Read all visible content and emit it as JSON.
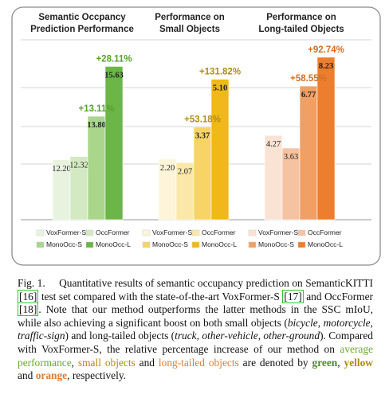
{
  "chart_data": {
    "type": "bar",
    "panels": [
      {
        "title_lines": [
          "Semantic Occpancy",
          "Prediction Performance"
        ],
        "categories": [
          "VoxFormer-S",
          "OccFormer",
          "MonoOcc-S",
          "MonoOcc-L"
        ],
        "values": [
          12.2,
          12.32,
          13.8,
          15.63
        ],
        "value_labels": [
          "12.20",
          "12.32",
          "13.80",
          "15.63"
        ],
        "colors": [
          "#e8f3df",
          "#d3e9c2",
          "#a9d68b",
          "#6bb646"
        ],
        "increases": [
          {
            "bar": 2,
            "label": "+13.11%"
          },
          {
            "bar": 3,
            "label": "+28.11%"
          }
        ],
        "increase_color": "#58a12d"
      },
      {
        "title_lines": [
          "Performance on",
          "Small Objects"
        ],
        "categories": [
          "VoxFormer-S",
          "OccFormer",
          "MonoOcc-S",
          "MonoOcc-L"
        ],
        "values": [
          2.2,
          2.07,
          3.37,
          5.1
        ],
        "value_labels": [
          "2.20",
          "2.07",
          "3.37",
          "5.10"
        ],
        "colors": [
          "#fdf4d9",
          "#fbe7a8",
          "#f7d465",
          "#f0b818"
        ],
        "increases": [
          {
            "bar": 2,
            "label": "+53.18%"
          },
          {
            "bar": 3,
            "label": "+131.82%"
          }
        ],
        "increase_color": "#b38b16"
      },
      {
        "title_lines": [
          "Performance on",
          "Long-tailed Objects"
        ],
        "categories": [
          "VoxFormer-S",
          "OccFormer",
          "MonoOcc-S",
          "MonoOcc-L"
        ],
        "values": [
          4.27,
          3.63,
          6.77,
          8.23
        ],
        "value_labels": [
          "4.27",
          "3.63",
          "6.77",
          "8.23"
        ],
        "colors": [
          "#fbe3d4",
          "#f5c2a2",
          "#f0a064",
          "#ec7e2e"
        ],
        "increases": [
          {
            "bar": 2,
            "label": "+58.55%"
          },
          {
            "bar": 3,
            "label": "+92.74%"
          }
        ],
        "increase_color": "#d46d25"
      }
    ],
    "grid": true
  },
  "caption": {
    "fig_label": "Fig. 1.",
    "text_1": "Quantitative results of semantic occupancy prediction on SemanticKITTI",
    "ref_16": "[16]",
    "text_2": "test set compared with the state-of-the-art VoxFormer-S",
    "ref_17": "[17]",
    "text_3": "and OccFormer",
    "ref_18": "[18]",
    "text_4": ". Note that our method outperforms the latter methods in the SSC mIoU, while also achieving a significant boost on both small objects (",
    "small_1": "bicycle",
    "small_2": "motorcycle",
    "small_3": "traffic-sign",
    "text_5": ") and long-tailed objects (",
    "long_1": "truck",
    "long_2": "other-vehicle",
    "long_3": "other-ground",
    "text_6": "). Compared with VoxFormer-S, the relative percentage increase of our method on",
    "avg_perf": "average performance",
    "sep": ",",
    "small_objects": "small objects",
    "and1": "and",
    "long_tailed": "long-tailed objects",
    "text_7": "are denoted by",
    "green": "green",
    "comma": ",",
    "yellow": "yellow",
    "and2": "and",
    "orange": "orange",
    "text_8": ", respectively."
  }
}
